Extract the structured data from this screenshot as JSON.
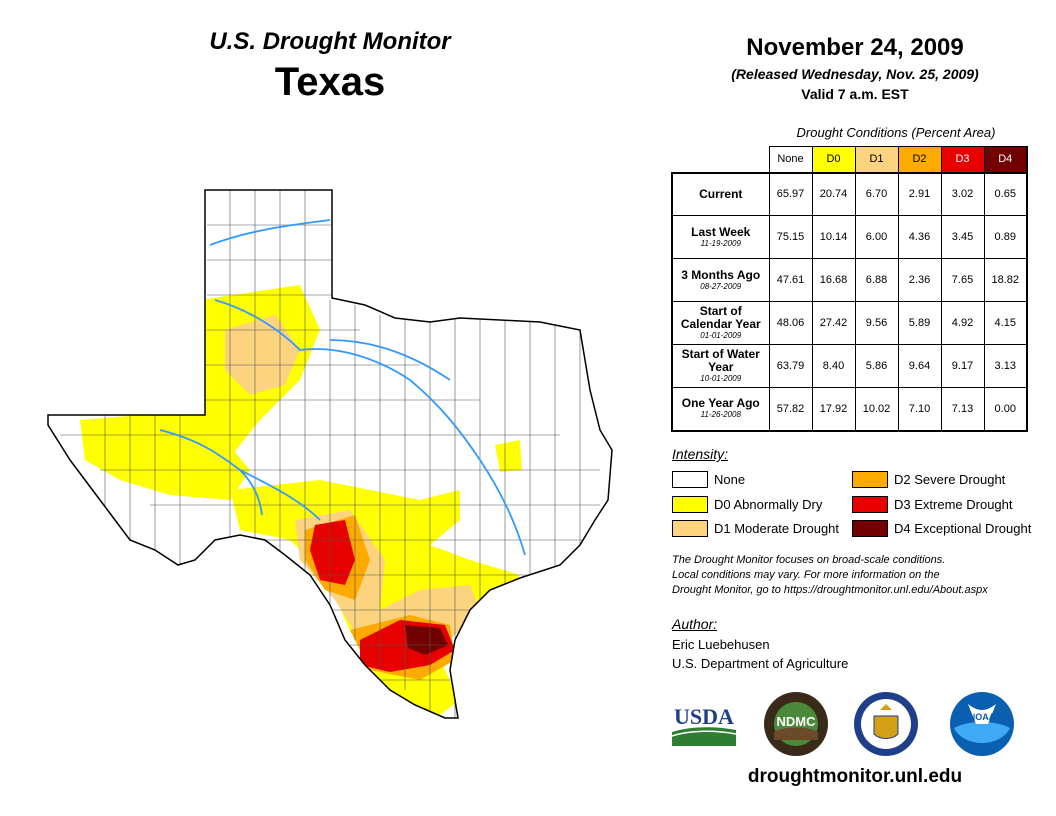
{
  "header": {
    "monitor_title": "U.S. Drought Monitor",
    "state": "Texas",
    "date": "November 24, 2009",
    "released": "(Released Wednesday, Nov. 25, 2009)",
    "valid": "Valid 7 a.m. EST"
  },
  "conditions": {
    "caption": "Drought Conditions (Percent Area)",
    "categories": [
      {
        "label": "None",
        "color": "#ffffff",
        "text_color": "#000000"
      },
      {
        "label": "D0",
        "color": "#ffff00",
        "text_color": "#000000"
      },
      {
        "label": "D1",
        "color": "#fcd37f",
        "text_color": "#000000"
      },
      {
        "label": "D2",
        "color": "#ffaa00",
        "text_color": "#000000"
      },
      {
        "label": "D3",
        "color": "#e60000",
        "text_color": "#ffffff"
      },
      {
        "label": "D4",
        "color": "#730000",
        "text_color": "#ffffff"
      }
    ],
    "rows": [
      {
        "label": "Current",
        "date": "",
        "values": [
          "65.97",
          "20.74",
          "6.70",
          "2.91",
          "3.02",
          "0.65"
        ]
      },
      {
        "label": "Last Week",
        "date": "11-19-2009",
        "values": [
          "75.15",
          "10.14",
          "6.00",
          "4.36",
          "3.45",
          "0.89"
        ]
      },
      {
        "label": "3 Months Ago",
        "date": "08-27-2009",
        "values": [
          "47.61",
          "16.68",
          "6.88",
          "2.36",
          "7.65",
          "18.82"
        ]
      },
      {
        "label": "Start of Calendar Year",
        "date": "01-01-2009",
        "values": [
          "48.06",
          "27.42",
          "9.56",
          "5.89",
          "4.92",
          "4.15"
        ]
      },
      {
        "label": "Start of Water Year",
        "date": "10-01-2009",
        "values": [
          "63.79",
          "8.40",
          "5.86",
          "9.64",
          "9.17",
          "3.13"
        ]
      },
      {
        "label": "One Year Ago",
        "date": "11-26-2008",
        "values": [
          "57.82",
          "17.92",
          "10.02",
          "7.10",
          "7.13",
          "0.00"
        ]
      }
    ]
  },
  "legend": {
    "title": "Intensity:",
    "items": [
      {
        "label": "None",
        "color": "#ffffff"
      },
      {
        "label": "D0 Abnormally Dry",
        "color": "#ffff00"
      },
      {
        "label": "D1 Moderate Drought",
        "color": "#fcd37f"
      },
      {
        "label": "D2 Severe Drought",
        "color": "#ffaa00"
      },
      {
        "label": "D3 Extreme Drought",
        "color": "#e60000"
      },
      {
        "label": "D4 Exceptional Drought",
        "color": "#730000"
      }
    ]
  },
  "disclaimer": {
    "line1": "The Drought Monitor focuses on broad-scale conditions.",
    "line2": "Local conditions may vary. For more information on the",
    "line3": "Drought Monitor, go to https://droughtmonitor.unl.edu/About.aspx"
  },
  "author": {
    "title": "Author:",
    "name": "Eric Luebehusen",
    "org": "U.S. Department of Agriculture"
  },
  "logos": {
    "usda": "USDA",
    "ndmc": "NDMC",
    "noaa": "NOAA"
  },
  "website": "droughtmonitor.unl.edu",
  "map": {
    "icon": "texas-drought-map",
    "colors": {
      "outline": "#000000",
      "county_lines": "#555555",
      "rivers": "#3399ff"
    }
  }
}
